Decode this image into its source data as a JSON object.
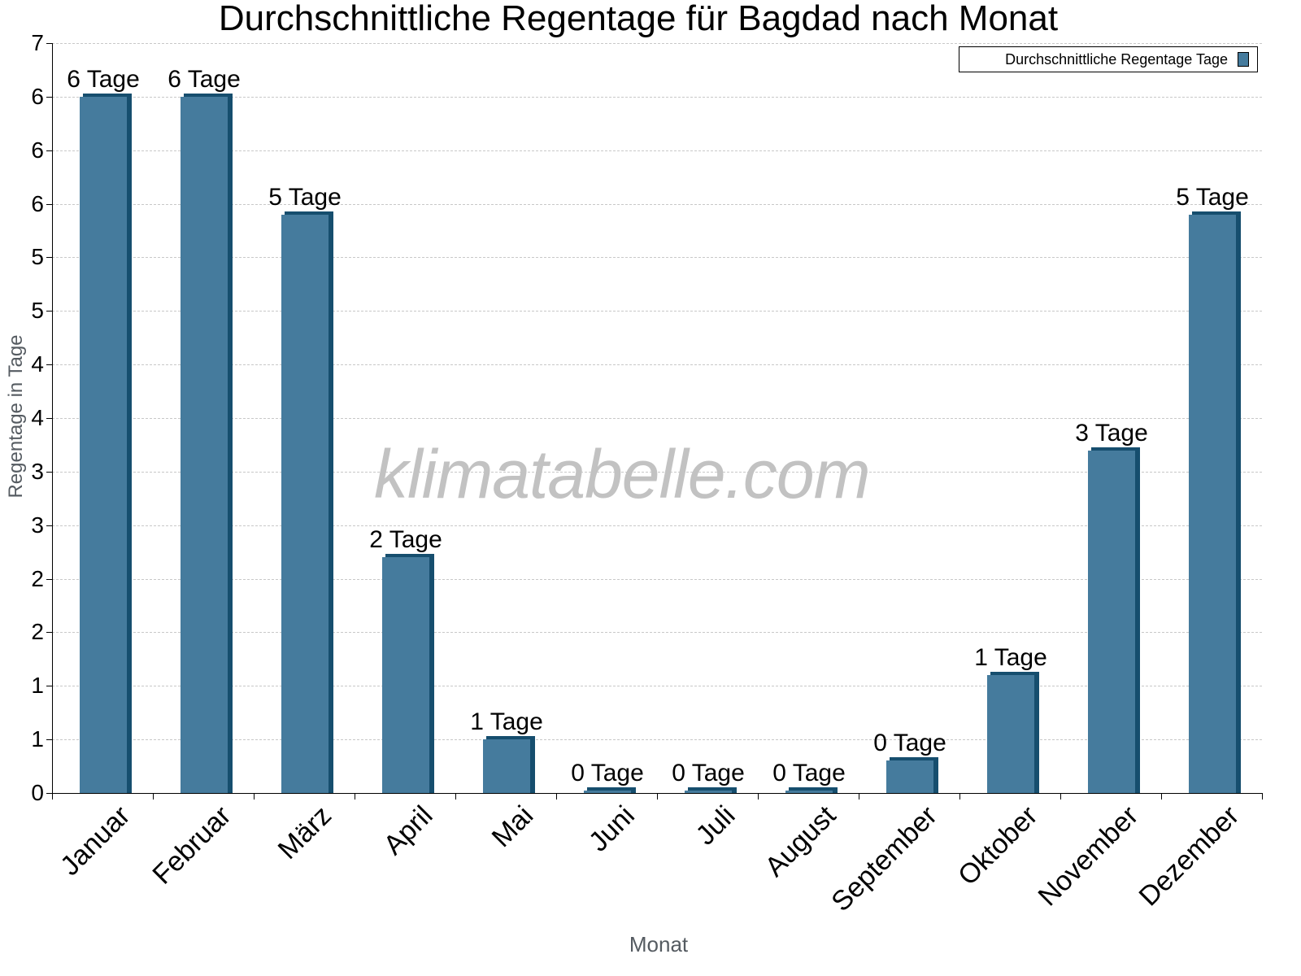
{
  "chart_data": {
    "type": "bar",
    "title": "Durchschnittliche Regentage für Bagdad nach Monat",
    "xlabel": "Monat",
    "ylabel": "Regentage in Tage",
    "ylim": [
      0,
      7
    ],
    "grid": true,
    "legend_position": "top-right",
    "y_tick_values": [
      0,
      0.5,
      1,
      1.5,
      2,
      2.5,
      3,
      3.5,
      4,
      4.5,
      5,
      5.5,
      6,
      6.5,
      7
    ],
    "y_tick_labels": [
      "0",
      "1",
      "1",
      "2",
      "2",
      "3",
      "3",
      "4",
      "4",
      "5",
      "5",
      "6",
      "6",
      "6",
      "7"
    ],
    "categories": [
      "Januar",
      "Februar",
      "März",
      "April",
      "Mai",
      "Juni",
      "Juli",
      "August",
      "September",
      "Oktober",
      "November",
      "Dezember"
    ],
    "series": [
      {
        "name": "Durchschnittliche Regentage Tage",
        "color": "#457b9d",
        "values": [
          6.5,
          6.5,
          5.4,
          2.2,
          0.5,
          0.02,
          0.02,
          0.02,
          0.3,
          1.1,
          3.2,
          5.4
        ],
        "labels": [
          "6 Tage",
          "6 Tage",
          "5 Tage",
          "2 Tage",
          "1 Tage",
          "0 Tage",
          "0 Tage",
          "0 Tage",
          "0 Tage",
          "1 Tage",
          "3 Tage",
          "5 Tage"
        ]
      }
    ],
    "watermark": "klimatabelle.com"
  },
  "colors": {
    "bar_face": "#457b9d",
    "bar_side": "#164e6e",
    "grid": "#c8c8c8",
    "axis_title": "#555b61",
    "watermark": "#c2c2c2"
  }
}
